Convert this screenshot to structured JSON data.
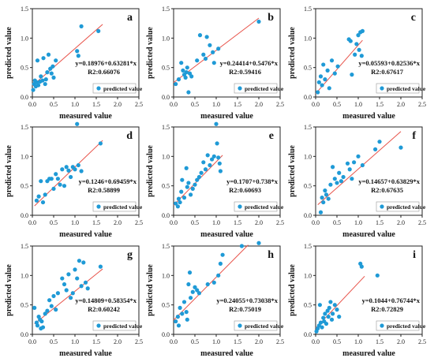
{
  "style": {
    "point_color": "#1f9ad6",
    "line_color": "#e8534a",
    "axis_color": "#222222"
  },
  "axes": {
    "xlabel": "measured value",
    "ylabel": "predicted value",
    "xlim": [
      0,
      2.5
    ],
    "ylim": [
      0,
      1.5
    ],
    "x_ticks": [
      "0.0",
      "0.5",
      "1.0",
      "1.5",
      "2.0",
      "2.5"
    ],
    "y_ticks": [
      "0.0",
      "0.5",
      "1.0",
      "1.5"
    ]
  },
  "legend_label": "predicted value",
  "chart_data": [
    {
      "type": "scatter",
      "panel_letter": "a",
      "equation": "y=0.18976+0.63281*x",
      "r2": "R2:0.66076",
      "intercept": 0.18976,
      "slope": 0.63281,
      "fit_range": [
        0.0,
        1.65
      ],
      "legend_placement": "bottom-right",
      "points": [
        [
          0.02,
          0.12
        ],
        [
          0.04,
          0.22
        ],
        [
          0.06,
          0.28
        ],
        [
          0.08,
          0.18
        ],
        [
          0.1,
          0.25
        ],
        [
          0.12,
          0.62
        ],
        [
          0.14,
          0.2
        ],
        [
          0.18,
          0.26
        ],
        [
          0.2,
          0.35
        ],
        [
          0.24,
          0.28
        ],
        [
          0.26,
          0.66
        ],
        [
          0.3,
          0.22
        ],
        [
          0.32,
          0.3
        ],
        [
          0.35,
          0.42
        ],
        [
          0.38,
          0.72
        ],
        [
          0.42,
          0.48
        ],
        [
          0.45,
          0.4
        ],
        [
          0.48,
          0.52
        ],
        [
          0.5,
          0.33
        ],
        [
          0.55,
          0.62
        ],
        [
          1.05,
          0.78
        ],
        [
          1.08,
          0.7
        ],
        [
          1.15,
          1.2
        ],
        [
          1.55,
          1.12
        ]
      ]
    },
    {
      "type": "scatter",
      "panel_letter": "b",
      "equation": "y=0.24414+0.5476*x",
      "r2": "R2:0.59416",
      "intercept": 0.24414,
      "slope": 0.5476,
      "fit_range": [
        0.0,
        2.0
      ],
      "legend_placement": "bottom-right",
      "points": [
        [
          0.05,
          0.22
        ],
        [
          0.12,
          0.3
        ],
        [
          0.18,
          0.58
        ],
        [
          0.22,
          0.45
        ],
        [
          0.25,
          0.38
        ],
        [
          0.28,
          0.33
        ],
        [
          0.3,
          0.42
        ],
        [
          0.32,
          0.5
        ],
        [
          0.35,
          0.08
        ],
        [
          0.38,
          0.4
        ],
        [
          0.42,
          0.35
        ],
        [
          0.55,
          0.62
        ],
        [
          0.62,
          1.05
        ],
        [
          0.7,
          0.72
        ],
        [
          0.75,
          0.65
        ],
        [
          0.78,
          1.02
        ],
        [
          0.85,
          0.88
        ],
        [
          0.92,
          0.76
        ],
        [
          0.95,
          0.58
        ],
        [
          1.05,
          0.82
        ],
        [
          2.0,
          1.28
        ]
      ]
    },
    {
      "type": "scatter",
      "panel_letter": "c",
      "equation": "y=0.05593+0.82536*x",
      "r2": "R2:0.67617",
      "intercept": 0.05593,
      "slope": 0.82536,
      "fit_range": [
        0.0,
        1.1
      ],
      "legend_placement": "bottom-right",
      "points": [
        [
          0.05,
          0.08
        ],
        [
          0.08,
          0.25
        ],
        [
          0.12,
          0.35
        ],
        [
          0.15,
          0.2
        ],
        [
          0.18,
          0.55
        ],
        [
          0.22,
          0.3
        ],
        [
          0.28,
          0.45
        ],
        [
          0.32,
          0.15
        ],
        [
          0.38,
          0.62
        ],
        [
          0.45,
          0.4
        ],
        [
          0.52,
          0.52
        ],
        [
          0.78,
          0.98
        ],
        [
          0.82,
          0.95
        ],
        [
          0.85,
          0.38
        ],
        [
          0.92,
          0.72
        ],
        [
          0.96,
          0.9
        ],
        [
          1.0,
          1.05
        ],
        [
          1.02,
          0.8
        ],
        [
          1.05,
          1.1
        ],
        [
          1.08,
          0.7
        ],
        [
          1.1,
          1.12
        ]
      ]
    },
    {
      "type": "scatter",
      "panel_letter": "d",
      "equation": "y=0.1246+0.69459*x",
      "r2": "R2:0.58899",
      "intercept": 0.1246,
      "slope": 0.69459,
      "fit_range": [
        0.05,
        1.65
      ],
      "legend_placement": "bottom-right",
      "points": [
        [
          0.1,
          0.25
        ],
        [
          0.15,
          0.32
        ],
        [
          0.2,
          0.58
        ],
        [
          0.25,
          0.22
        ],
        [
          0.3,
          0.35
        ],
        [
          0.35,
          0.58
        ],
        [
          0.4,
          0.62
        ],
        [
          0.45,
          0.62
        ],
        [
          0.5,
          0.45
        ],
        [
          0.55,
          0.7
        ],
        [
          0.6,
          0.62
        ],
        [
          0.65,
          0.52
        ],
        [
          0.7,
          0.78
        ],
        [
          0.75,
          0.5
        ],
        [
          0.8,
          0.82
        ],
        [
          0.85,
          0.76
        ],
        [
          0.9,
          0.65
        ],
        [
          0.95,
          0.82
        ],
        [
          1.0,
          0.78
        ],
        [
          1.05,
          1.55
        ],
        [
          1.08,
          0.85
        ],
        [
          1.15,
          0.75
        ],
        [
          1.6,
          1.22
        ]
      ]
    },
    {
      "type": "scatter",
      "panel_letter": "e",
      "equation": "y=0.1707+0.738*x",
      "r2": "R2:0.60693",
      "intercept": 0.1707,
      "slope": 0.738,
      "fit_range": [
        0.0,
        1.15
      ],
      "legend_placement": "bottom-right",
      "points": [
        [
          0.05,
          0.2
        ],
        [
          0.1,
          0.15
        ],
        [
          0.12,
          0.28
        ],
        [
          0.15,
          0.22
        ],
        [
          0.18,
          0.4
        ],
        [
          0.2,
          0.6
        ],
        [
          0.25,
          0.3
        ],
        [
          0.3,
          0.8
        ],
        [
          0.32,
          0.48
        ],
        [
          0.35,
          0.55
        ],
        [
          0.4,
          0.35
        ],
        [
          0.45,
          0.45
        ],
        [
          0.5,
          0.52
        ],
        [
          0.55,
          0.6
        ],
        [
          0.6,
          0.65
        ],
        [
          0.65,
          0.72
        ],
        [
          0.7,
          0.9
        ],
        [
          0.75,
          0.78
        ],
        [
          0.8,
          1.02
        ],
        [
          0.85,
          0.85
        ],
        [
          0.9,
          0.95
        ],
        [
          0.95,
          1.0
        ],
        [
          1.0,
          1.55
        ],
        [
          1.02,
          1.22
        ],
        [
          1.05,
          0.98
        ],
        [
          1.08,
          0.88
        ],
        [
          1.1,
          0.75
        ]
      ]
    },
    {
      "type": "scatter",
      "panel_letter": "f",
      "equation": "y=0.14657+0.63829*x",
      "r2": "R2:0.67635",
      "intercept": 0.14657,
      "slope": 0.63829,
      "fit_range": [
        0.05,
        2.0
      ],
      "legend_placement": "bottom-right",
      "points": [
        [
          0.12,
          0.05
        ],
        [
          0.15,
          0.3
        ],
        [
          0.18,
          0.22
        ],
        [
          0.22,
          0.42
        ],
        [
          0.25,
          0.35
        ],
        [
          0.3,
          0.28
        ],
        [
          0.35,
          0.52
        ],
        [
          0.4,
          0.82
        ],
        [
          0.45,
          0.62
        ],
        [
          0.5,
          0.55
        ],
        [
          0.55,
          0.72
        ],
        [
          0.6,
          0.58
        ],
        [
          0.65,
          0.65
        ],
        [
          0.75,
          0.88
        ],
        [
          0.8,
          0.78
        ],
        [
          0.85,
          0.62
        ],
        [
          0.9,
          0.9
        ],
        [
          1.0,
          1.0
        ],
        [
          1.1,
          0.85
        ],
        [
          1.4,
          1.12
        ],
        [
          1.5,
          1.25
        ],
        [
          2.0,
          1.15
        ]
      ]
    },
    {
      "type": "scatter",
      "panel_letter": "g",
      "equation": "y=0.14809+0.58354*x",
      "r2": "R2:0.60242",
      "intercept": 0.14809,
      "slope": 0.58354,
      "fit_range": [
        0.05,
        1.65
      ],
      "legend_placement": "bottom-right",
      "points": [
        [
          0.05,
          0.45
        ],
        [
          0.1,
          0.2
        ],
        [
          0.12,
          0.15
        ],
        [
          0.15,
          0.3
        ],
        [
          0.18,
          0.25
        ],
        [
          0.2,
          0.1
        ],
        [
          0.22,
          0.22
        ],
        [
          0.25,
          0.12
        ],
        [
          0.3,
          0.35
        ],
        [
          0.35,
          0.4
        ],
        [
          0.4,
          0.58
        ],
        [
          0.45,
          0.48
        ],
        [
          0.5,
          0.65
        ],
        [
          0.55,
          0.42
        ],
        [
          0.6,
          0.7
        ],
        [
          0.7,
          0.95
        ],
        [
          0.75,
          0.85
        ],
        [
          0.8,
          0.75
        ],
        [
          0.85,
          1.02
        ],
        [
          0.9,
          0.62
        ],
        [
          0.95,
          0.7
        ],
        [
          1.0,
          1.1
        ],
        [
          1.05,
          0.95
        ],
        [
          1.1,
          1.25
        ],
        [
          1.15,
          0.82
        ],
        [
          1.2,
          1.22
        ],
        [
          1.25,
          0.88
        ],
        [
          1.3,
          0.78
        ],
        [
          1.6,
          1.15
        ]
      ]
    },
    {
      "type": "scatter",
      "panel_letter": "h",
      "equation": "y=0.24055+0.73038*x",
      "r2": "R2:0.75019",
      "intercept": 0.24055,
      "slope": 0.73038,
      "fit_range": [
        0.0,
        1.75
      ],
      "legend_placement": "bottom-right",
      "points": [
        [
          0.05,
          0.22
        ],
        [
          0.1,
          0.3
        ],
        [
          0.12,
          0.15
        ],
        [
          0.15,
          0.45
        ],
        [
          0.2,
          0.35
        ],
        [
          0.25,
          0.55
        ],
        [
          0.3,
          0.38
        ],
        [
          0.32,
          0.25
        ],
        [
          0.35,
          0.85
        ],
        [
          0.38,
          1.05
        ],
        [
          0.4,
          0.62
        ],
        [
          0.45,
          0.72
        ],
        [
          0.5,
          0.8
        ],
        [
          0.55,
          0.75
        ],
        [
          0.6,
          0.7
        ],
        [
          0.8,
          0.85
        ],
        [
          0.95,
          0.88
        ],
        [
          1.05,
          1.0
        ],
        [
          1.1,
          1.2
        ],
        [
          1.15,
          1.35
        ],
        [
          1.6,
          1.5
        ],
        [
          2.0,
          1.55
        ]
      ]
    },
    {
      "type": "scatter",
      "panel_letter": "i",
      "equation": "y=0.1044+0.76744*x",
      "r2": "R2:0.72829",
      "intercept": 0.1044,
      "slope": 0.76744,
      "fit_range": [
        0.0,
        1.15
      ],
      "legend_placement": "bottom-right",
      "points": [
        [
          0.02,
          0.05
        ],
        [
          0.05,
          0.1
        ],
        [
          0.08,
          0.15
        ],
        [
          0.1,
          0.5
        ],
        [
          0.12,
          0.2
        ],
        [
          0.15,
          0.12
        ],
        [
          0.18,
          0.28
        ],
        [
          0.2,
          0.22
        ],
        [
          0.22,
          0.35
        ],
        [
          0.25,
          0.18
        ],
        [
          0.28,
          0.4
        ],
        [
          0.3,
          0.3
        ],
        [
          0.32,
          0.45
        ],
        [
          0.35,
          0.55
        ],
        [
          0.38,
          0.25
        ],
        [
          0.4,
          0.35
        ],
        [
          0.45,
          0.5
        ],
        [
          0.5,
          0.42
        ],
        [
          0.55,
          0.3
        ],
        [
          1.05,
          1.2
        ],
        [
          1.08,
          1.15
        ],
        [
          1.45,
          1.0
        ]
      ]
    }
  ]
}
